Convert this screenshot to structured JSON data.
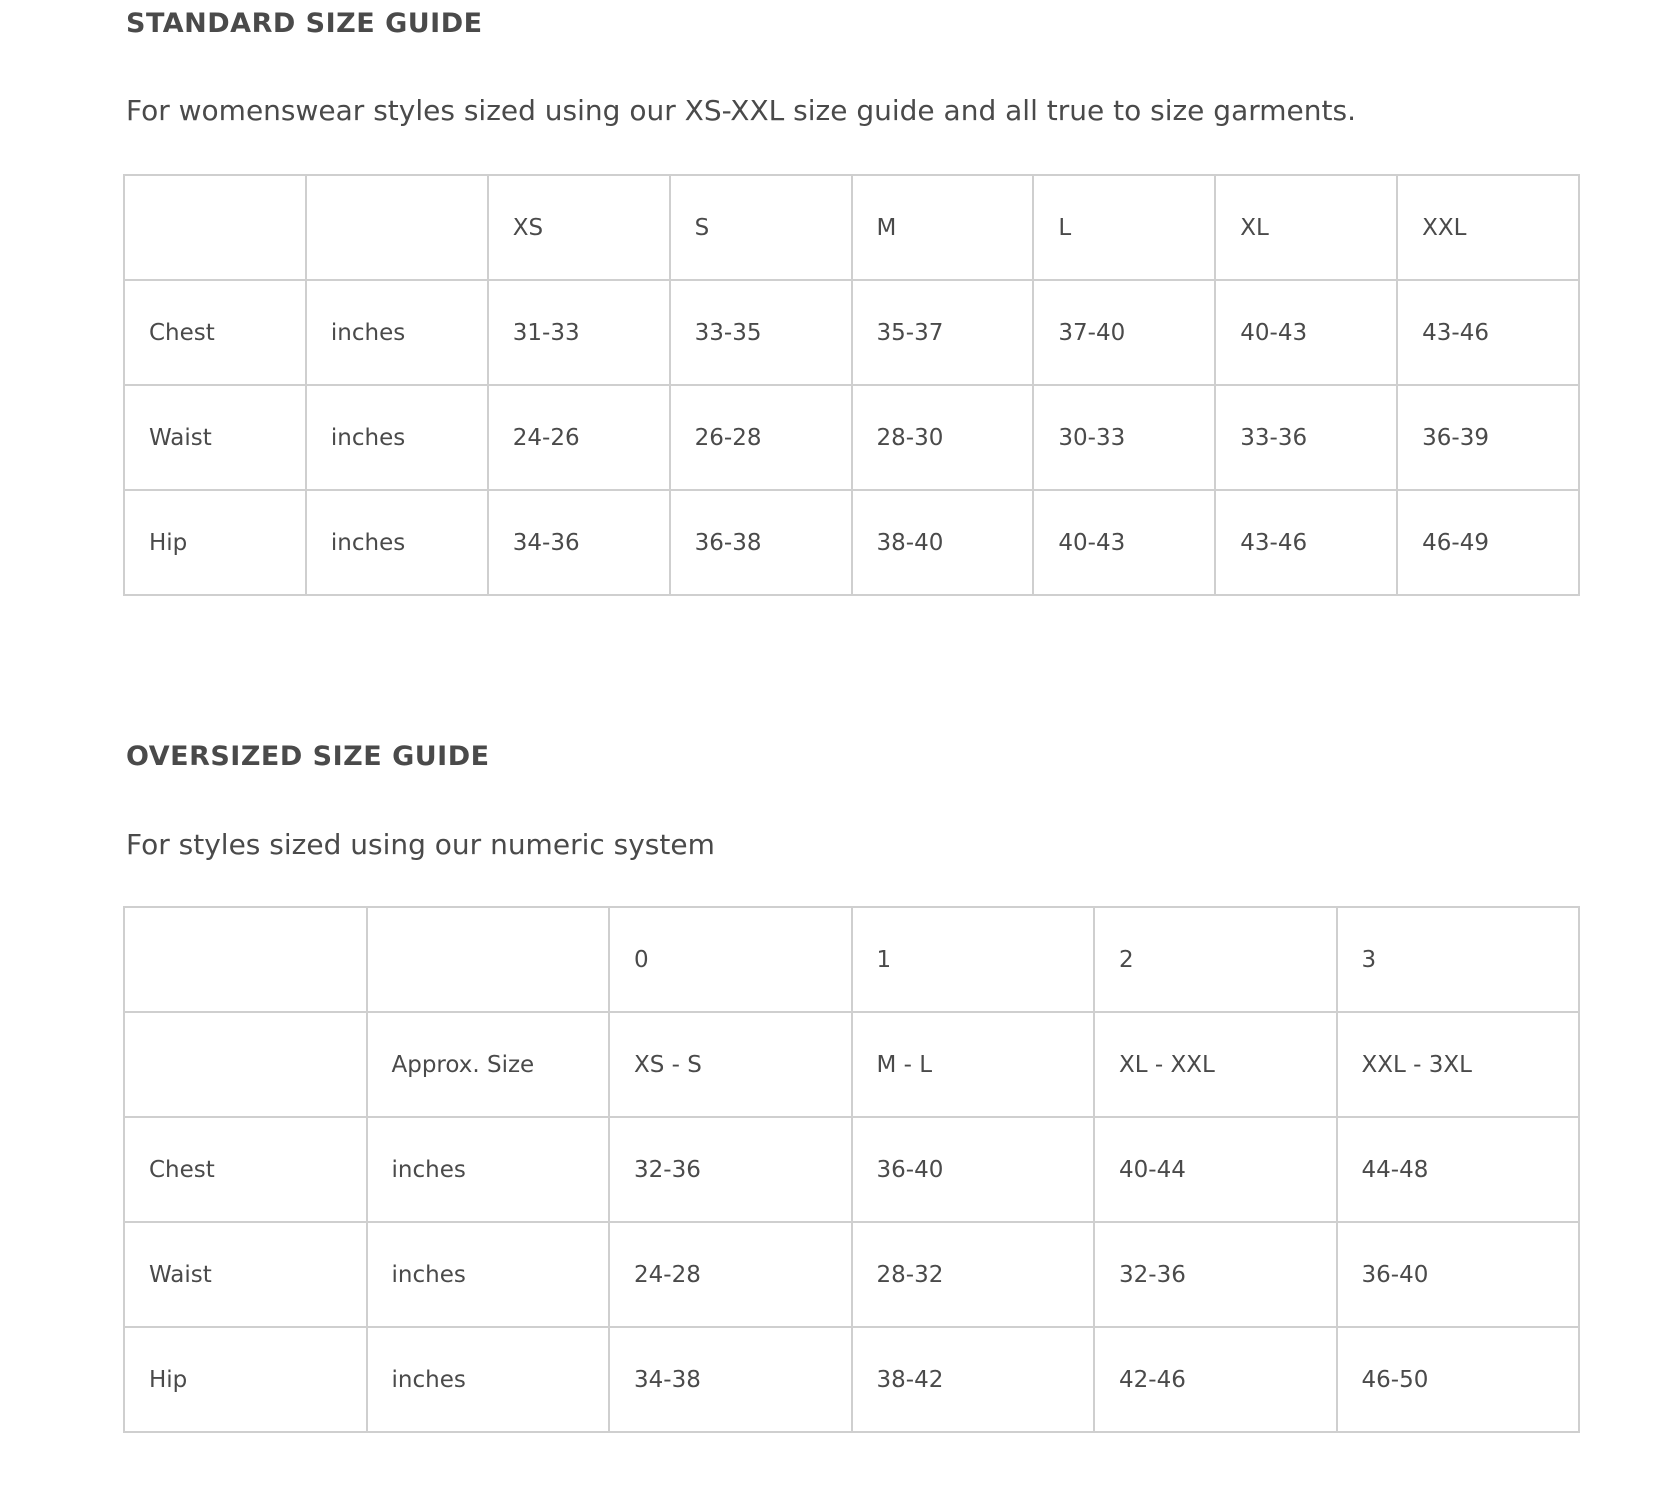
{
  "standard": {
    "title": "STANDARD SIZE GUIDE",
    "subtitle": "For womenswear styles sized using our XS-XXL size guide and all true to size garments.",
    "rows": [
      [
        "",
        "",
        "XS",
        "S",
        "M",
        "L",
        "XL",
        "XXL"
      ],
      [
        "Chest",
        "inches",
        "31-33",
        "33-35",
        "35-37",
        "37-40",
        "40-43",
        "43-46"
      ],
      [
        "Waist",
        "inches",
        "24-26",
        "26-28",
        "28-30",
        "30-33",
        "33-36",
        "36-39"
      ],
      [
        "Hip",
        "inches",
        "34-36",
        "36-38",
        "38-40",
        "40-43",
        "43-46",
        "46-49"
      ]
    ]
  },
  "oversized": {
    "title": "OVERSIZED SIZE GUIDE",
    "subtitle": "For styles sized using our numeric system",
    "rows": [
      [
        "",
        "",
        "0",
        "1",
        "2",
        "3"
      ],
      [
        "",
        "Approx. Size",
        "XS - S",
        "M - L",
        "XL - XXL",
        "XXL - 3XL"
      ],
      [
        "Chest",
        "inches",
        "32-36",
        "36-40",
        "40-44",
        "44-48"
      ],
      [
        "Waist",
        "inches",
        "24-28",
        "28-32",
        "32-36",
        "36-40"
      ],
      [
        "Hip",
        "inches",
        "34-38",
        "38-42",
        "42-46",
        "46-50"
      ]
    ]
  }
}
